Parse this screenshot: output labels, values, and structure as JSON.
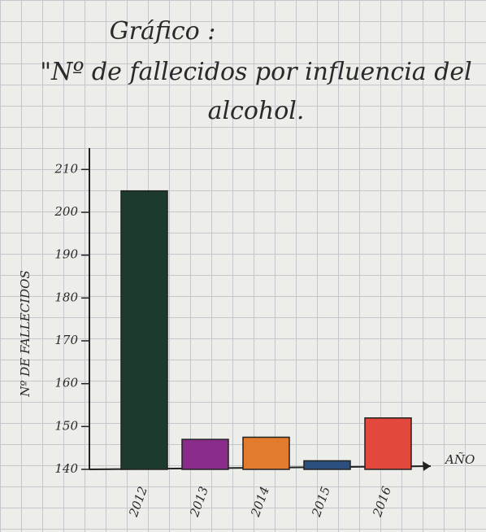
{
  "chart_data": {
    "type": "bar",
    "title": "Gráfico :",
    "subtitle": "\"Nº de fallecidos por influencia del alcohol.",
    "y_label": "Nº DE FALLECIDOS",
    "x_label": "AÑO",
    "categories": [
      "2012",
      "2013",
      "2014",
      "2015",
      "2016"
    ],
    "values": [
      205,
      147,
      147.5,
      142,
      152
    ],
    "colors": [
      "#1d3a2f",
      "#8a2c8c",
      "#e27b2c",
      "#2b4f7e",
      "#e2483c"
    ],
    "ylim": [
      140,
      215
    ],
    "yticks": [
      140,
      150,
      160,
      170,
      180,
      190,
      200,
      210
    ],
    "grid": false
  }
}
